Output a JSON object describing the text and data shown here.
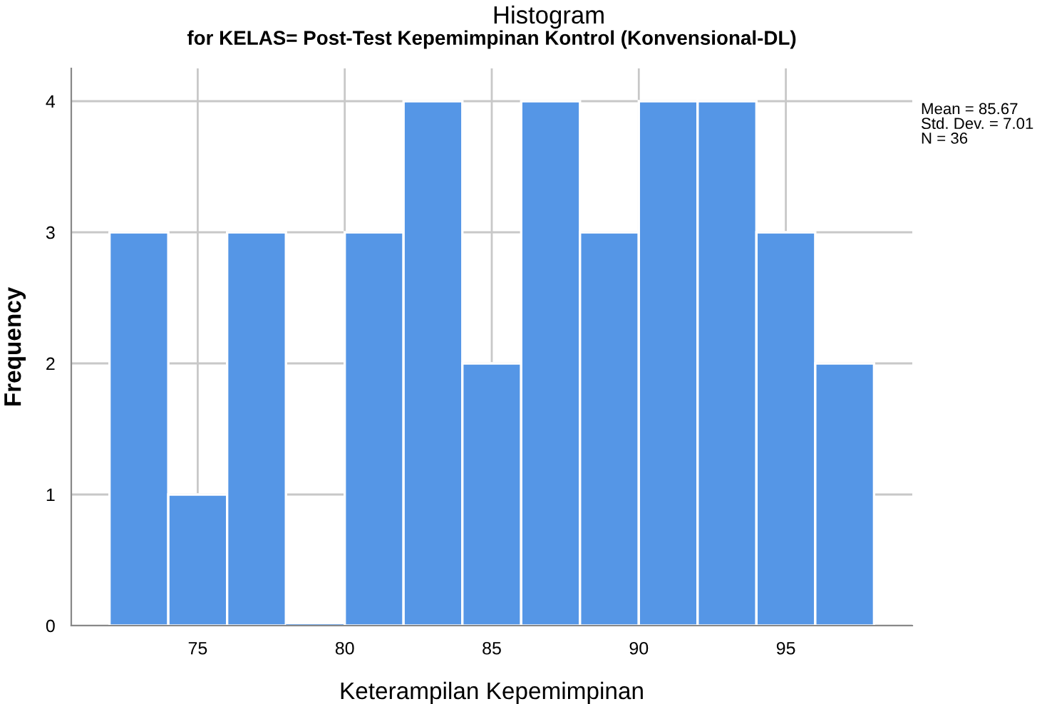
{
  "chart_data": {
    "type": "histogram",
    "title": "Histogram",
    "subtitle": "for KELAS= Post-Test Kepemimpinan Kontrol (Konvensional-DL)",
    "xlabel": "Keterampilan Kepemimpinan",
    "ylabel": "Frequency",
    "bins": [
      72,
      74,
      76,
      78,
      80,
      82,
      84,
      86,
      88,
      90,
      92,
      94,
      96,
      98
    ],
    "values": [
      3,
      1,
      3,
      0,
      3,
      4,
      2,
      4,
      3,
      4,
      4,
      3,
      2
    ],
    "color": "#5596e6",
    "xlim": [
      70.7,
      99.3
    ],
    "xticks": [
      75,
      80,
      85,
      90,
      95
    ],
    "ylim": [
      0,
      4.25
    ],
    "yticks": [
      0,
      1,
      2,
      3,
      4
    ],
    "grid": true,
    "annotations": [
      "Mean = 85.67\nStd. Dev. = 7.01\nN = 36"
    ]
  }
}
